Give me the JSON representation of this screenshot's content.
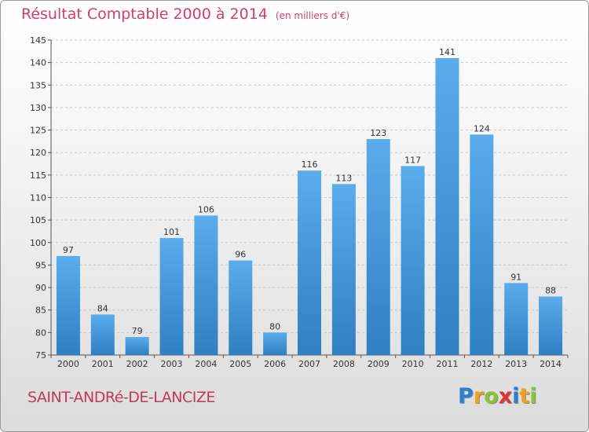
{
  "header": {
    "title": "Résultat Comptable 2000 à 2014",
    "unit": "(en milliers d'€)"
  },
  "footer": {
    "commune": "SAINT-ANDRé-DE-LANCIZE",
    "logo_letters": [
      "P",
      "r",
      "o",
      "x",
      "i",
      "t",
      "i"
    ],
    "logo_colors": [
      "#2b7fd4",
      "#f0a020",
      "#8ac43a",
      "#e0352f",
      "#2b7fd4",
      "#f0a020",
      "#8ac43a"
    ]
  },
  "colors": {
    "bar_top": "#5aacec",
    "bar_bottom": "#2f7fc2",
    "title": "#d43d6a",
    "grid": "#c8c8c8"
  },
  "chart_data": {
    "type": "bar",
    "categories": [
      "2000",
      "2001",
      "2002",
      "2003",
      "2004",
      "2005",
      "2006",
      "2007",
      "2008",
      "2009",
      "2010",
      "2011",
      "2012",
      "2013",
      "2014"
    ],
    "values": [
      97,
      84,
      79,
      101,
      106,
      96,
      80,
      116,
      113,
      123,
      117,
      141,
      124,
      91,
      88
    ],
    "ylim": [
      75,
      145
    ],
    "yticks": [
      75,
      80,
      85,
      90,
      95,
      100,
      105,
      110,
      115,
      120,
      125,
      130,
      135,
      140,
      145
    ],
    "grid": true,
    "data_labels": true
  }
}
